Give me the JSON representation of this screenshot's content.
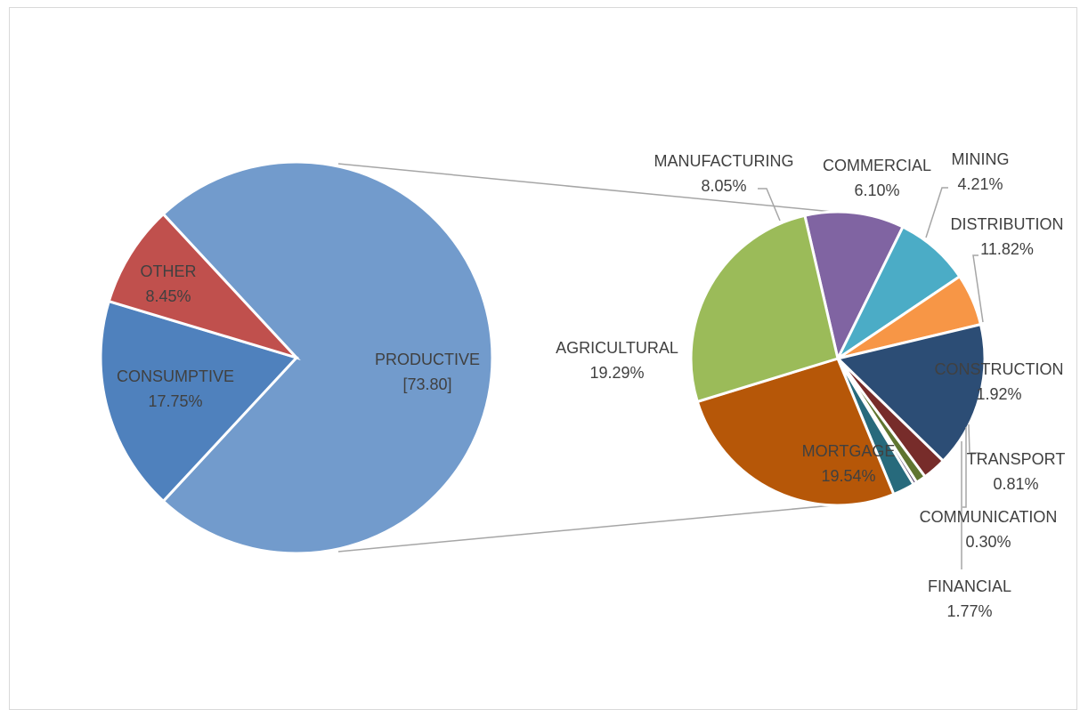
{
  "chart_data": {
    "type": "pie",
    "subtype": "pie-of-pie",
    "primary": {
      "slices": [
        {
          "key": "productive",
          "label": "PRODUCTIVE",
          "value_text": "[73.80]",
          "value": 73.8,
          "color": "#729BCC"
        },
        {
          "key": "consumptive",
          "label": "CONSUMPTIVE",
          "value_text": "17.75%",
          "value": 17.75,
          "color": "#4F81BD"
        },
        {
          "key": "other",
          "label": "OTHER",
          "value_text": "8.45%",
          "value": 8.45,
          "color": "#C0504D"
        }
      ]
    },
    "secondary": {
      "slices": [
        {
          "key": "manufacturing",
          "label": "MANUFACTURING",
          "value_text": "8.05%",
          "value": 8.05,
          "color": "#8064A2"
        },
        {
          "key": "commercial",
          "label": "COMMERCIAL",
          "value_text": "6.10%",
          "value": 6.1,
          "color": "#4BACC6"
        },
        {
          "key": "mining",
          "label": "MINING",
          "value_text": "4.21%",
          "value": 4.21,
          "color": "#F79646"
        },
        {
          "key": "distribution",
          "label": "DISTRIBUTION",
          "value_text": "11.82%",
          "value": 11.82,
          "color": "#2C4D75"
        },
        {
          "key": "construction",
          "label": "CONSTRUCTION",
          "value_text": "1.92%",
          "value": 1.92,
          "color": "#772C2A"
        },
        {
          "key": "transport",
          "label": "TRANSPORT",
          "value_text": "0.81%",
          "value": 0.81,
          "color": "#5F7530"
        },
        {
          "key": "communication",
          "label": "COMMUNICATION",
          "value_text": "0.30%",
          "value": 0.3,
          "color": "#4D3B62"
        },
        {
          "key": "financial",
          "label": "FINANCIAL",
          "value_text": "1.77%",
          "value": 1.77,
          "color": "#276A7C"
        },
        {
          "key": "mortgage",
          "label": "MORTGAGE",
          "value_text": "19.54%",
          "value": 19.54,
          "color": "#B65708"
        },
        {
          "key": "agricultural",
          "label": "AGRICULTURAL",
          "value_text": "19.29%",
          "value": 19.29,
          "color": "#9BBB59"
        }
      ]
    },
    "legend": "none"
  }
}
